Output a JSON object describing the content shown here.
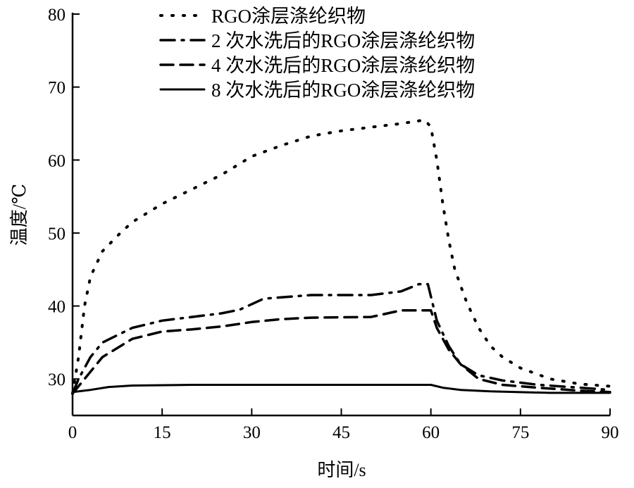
{
  "chart_data": {
    "type": "line",
    "title": "",
    "xlabel": "时间/s",
    "ylabel": "温度/℃",
    "xlim": [
      0,
      90
    ],
    "ylim": [
      25,
      80
    ],
    "xticks": [
      0,
      15,
      30,
      45,
      60,
      75,
      90
    ],
    "yticks": [
      30,
      40,
      50,
      60,
      70,
      80
    ],
    "grid": false,
    "legend_position": "top",
    "series": [
      {
        "name": "RGO涂层涤纶织物",
        "style": "dotted",
        "x": [
          0,
          1,
          2,
          3,
          5,
          8,
          10,
          15,
          20,
          25,
          30,
          35,
          40,
          45,
          50,
          55,
          59,
          60,
          61,
          62,
          63,
          64,
          66,
          68,
          70,
          72,
          75,
          80,
          85,
          90
        ],
        "y": [
          28,
          33,
          40,
          44,
          47.5,
          50,
          51.5,
          54,
          56,
          58,
          60.5,
          62,
          63.3,
          64,
          64.5,
          65,
          65.5,
          64.5,
          60,
          54,
          49,
          45,
          40.5,
          37,
          34.5,
          33,
          31.5,
          30,
          29.3,
          29
        ]
      },
      {
        "name": "2 次水洗后的RGO涂层涤纶织物",
        "style": "dash-dot",
        "x": [
          0,
          1,
          3,
          5,
          10,
          15,
          20,
          25,
          28,
          32,
          40,
          50,
          55,
          58,
          59.5,
          61,
          63,
          65,
          68,
          72,
          78,
          85,
          90
        ],
        "y": [
          28,
          30,
          33,
          35,
          37,
          38,
          38.5,
          39,
          39.5,
          41,
          41.5,
          41.5,
          42,
          43,
          43,
          38,
          34.5,
          32,
          30.5,
          29.8,
          29.2,
          28.8,
          28.5
        ]
      },
      {
        "name": "4 次水洗后的RGO涂层涤纶织物",
        "style": "dashed",
        "x": [
          0,
          2,
          5,
          10,
          15,
          20,
          25,
          30,
          35,
          40,
          50,
          55,
          60,
          61,
          63,
          65,
          68,
          72,
          78,
          85,
          90
        ],
        "y": [
          28,
          30,
          33,
          35.5,
          36.5,
          36.8,
          37.2,
          37.8,
          38.2,
          38.4,
          38.5,
          39.4,
          39.4,
          37,
          34,
          32,
          30,
          29.2,
          28.8,
          28.4,
          28.2
        ]
      },
      {
        "name": "8 次水洗后的RGO涂层涤纶织物",
        "style": "solid",
        "x": [
          0,
          3,
          6,
          10,
          20,
          60,
          62,
          65,
          70,
          80,
          90
        ],
        "y": [
          28.2,
          28.5,
          28.9,
          29.1,
          29.2,
          29.2,
          28.8,
          28.5,
          28.3,
          28.1,
          28.1
        ]
      }
    ],
    "colors": {
      "line": "#000000"
    }
  }
}
